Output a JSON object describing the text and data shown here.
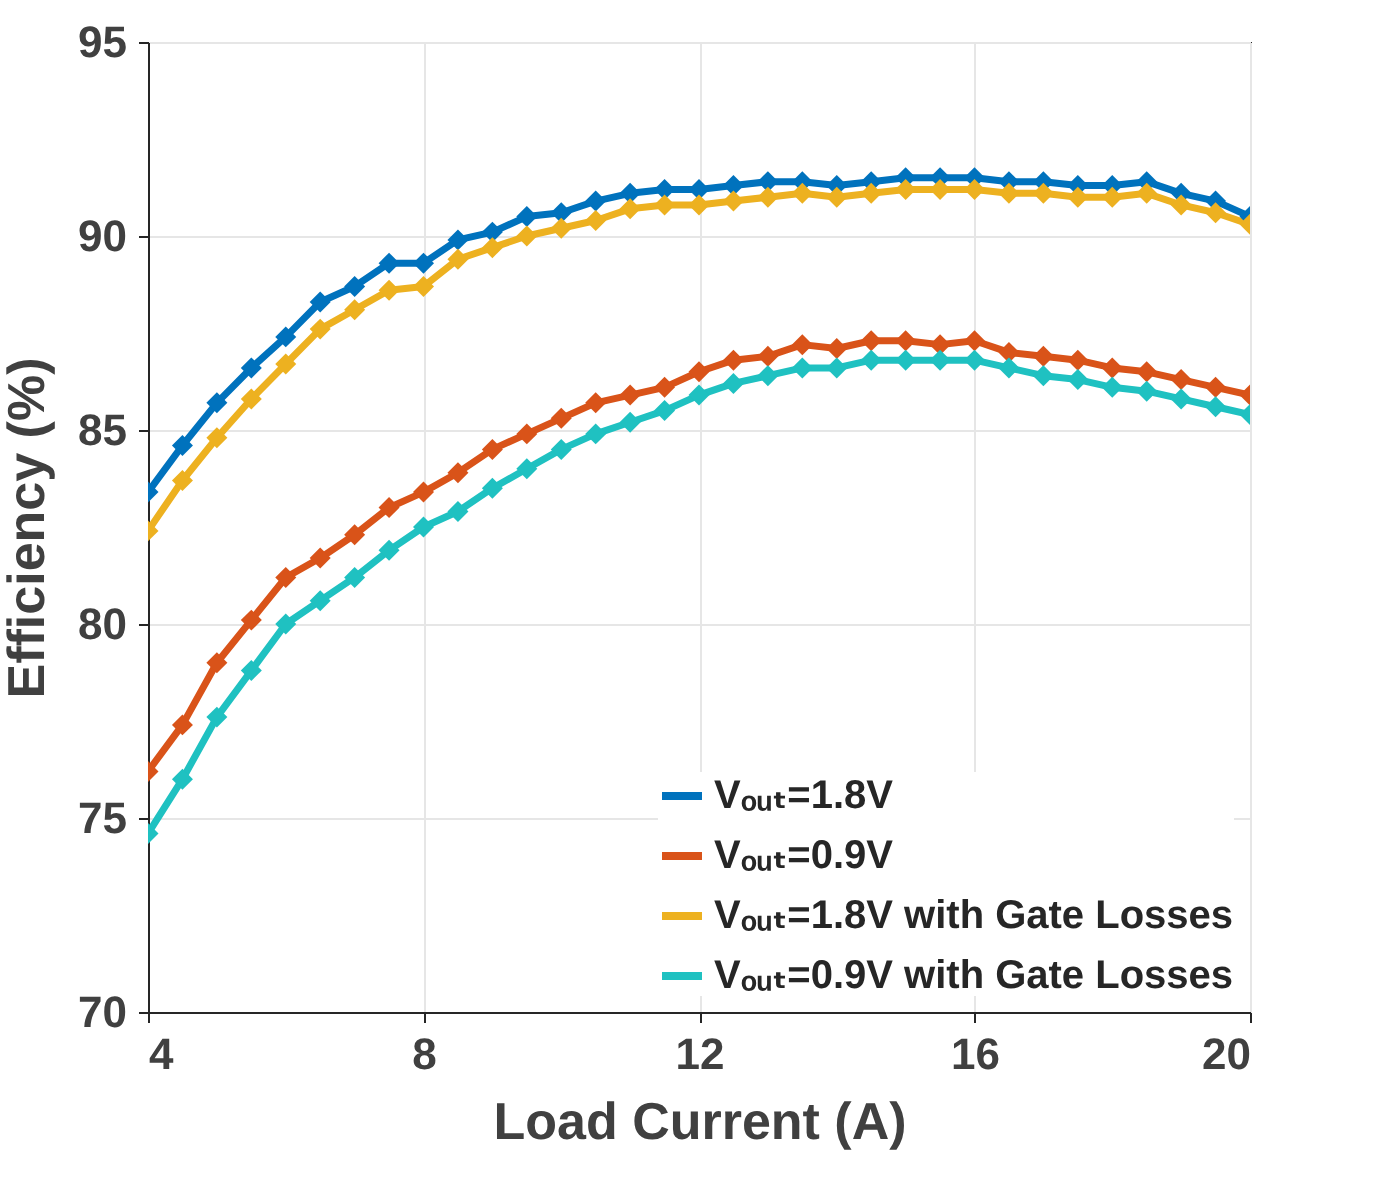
{
  "chart_data": {
    "type": "line",
    "xlabel": "Load Current (A)",
    "ylabel": "Efficiency (%)",
    "x": [
      4,
      4.5,
      5,
      5.5,
      6,
      6.5,
      7,
      7.5,
      8,
      8.5,
      9,
      9.5,
      10,
      10.5,
      11,
      11.5,
      12,
      12.5,
      13,
      13.5,
      14,
      14.5,
      15,
      15.5,
      16,
      16.5,
      17,
      17.5,
      18,
      18.5,
      19,
      19.5,
      20
    ],
    "series": [
      {
        "name": "Vₒᵤₜ=1.8V",
        "color": "#0072bd",
        "values": [
          83.4,
          84.6,
          85.7,
          86.6,
          87.4,
          88.3,
          88.7,
          89.3,
          89.3,
          89.9,
          90.1,
          90.5,
          90.6,
          90.9,
          91.1,
          91.2,
          91.2,
          91.3,
          91.4,
          91.4,
          91.3,
          91.4,
          91.5,
          91.5,
          91.5,
          91.4,
          91.4,
          91.3,
          91.3,
          91.4,
          91.1,
          90.9,
          90.5
        ]
      },
      {
        "name": "Vₒᵤₜ=0.9V",
        "color": "#d95319",
        "values": [
          76.2,
          77.4,
          79.0,
          80.1,
          81.2,
          81.7,
          82.3,
          83.0,
          83.4,
          83.9,
          84.5,
          84.9,
          85.3,
          85.7,
          85.9,
          86.1,
          86.5,
          86.8,
          86.9,
          87.2,
          87.1,
          87.3,
          87.3,
          87.2,
          87.3,
          87.0,
          86.9,
          86.8,
          86.6,
          86.5,
          86.3,
          86.1,
          85.9
        ]
      },
      {
        "name": "Vₒᵤₜ=1.8V with Gate Losses",
        "color": "#edb120",
        "values": [
          82.4,
          83.7,
          84.8,
          85.8,
          86.7,
          87.6,
          88.1,
          88.6,
          88.7,
          89.4,
          89.7,
          90.0,
          90.2,
          90.4,
          90.7,
          90.8,
          90.8,
          90.9,
          91.0,
          91.1,
          91.0,
          91.1,
          91.2,
          91.2,
          91.2,
          91.1,
          91.1,
          91.0,
          91.0,
          91.1,
          90.8,
          90.6,
          90.3
        ]
      },
      {
        "name": "Vₒᵤₜ=0.9V with Gate Losses",
        "color": "#1fc1c1",
        "values": [
          74.6,
          76.0,
          77.6,
          78.8,
          80.0,
          80.6,
          81.2,
          81.9,
          82.5,
          82.9,
          83.5,
          84.0,
          84.5,
          84.9,
          85.2,
          85.5,
          85.9,
          86.2,
          86.4,
          86.6,
          86.6,
          86.8,
          86.8,
          86.8,
          86.8,
          86.6,
          86.4,
          86.3,
          86.1,
          86.0,
          85.8,
          85.6,
          85.4
        ]
      }
    ],
    "xlim": [
      4,
      20
    ],
    "xticks": [
      4,
      8,
      12,
      16,
      20
    ],
    "ylim": [
      70,
      95
    ],
    "yticks": [
      70,
      75,
      80,
      85,
      90,
      95
    ],
    "grid": true,
    "legend": "bottom right",
    "marker": "diamond",
    "line_style": "solid"
  }
}
